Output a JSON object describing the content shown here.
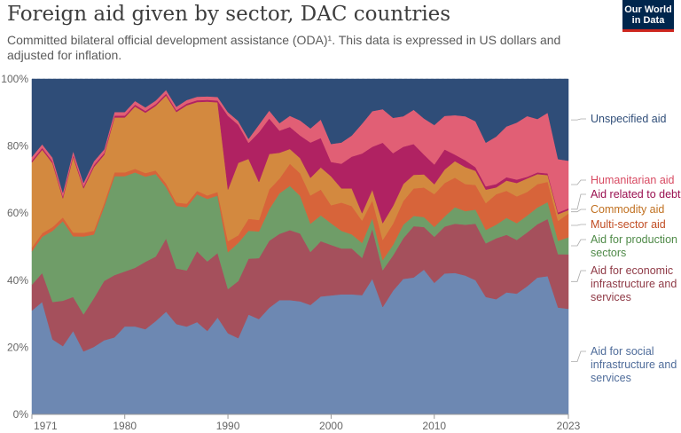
{
  "header": {
    "title": "Foreign aid given by sector, DAC countries",
    "subtitle": "Committed bilateral official development assistance (ODA)¹. This data is expressed in US dollars and adjusted for inflation.",
    "logo_line1": "Our World",
    "logo_line2": "in Data"
  },
  "colors": {
    "social": "#6d88b2",
    "economic": "#a5505c",
    "production": "#6f9d68",
    "multi": "#d7643a",
    "commodity": "#d3893f",
    "debt": "#b02262",
    "humanitarian": "#e15f75",
    "unspecified": "#2f4d78",
    "logo_bg": "#00264d",
    "logo_accent": "#ce261e"
  },
  "chart_data": {
    "type": "area",
    "stacked": true,
    "ylim": [
      0,
      100
    ],
    "yticks": [
      "0%",
      "20%",
      "40%",
      "60%",
      "80%",
      "100%"
    ],
    "xticks": [
      "1971",
      "1980",
      "1990",
      "2000",
      "2010",
      "2023"
    ],
    "grid": true,
    "legend": "right",
    "x": [
      1971,
      1972,
      1973,
      1974,
      1975,
      1976,
      1977,
      1978,
      1979,
      1980,
      1981,
      1982,
      1983,
      1984,
      1985,
      1986,
      1987,
      1988,
      1989,
      1990,
      1991,
      1992,
      1993,
      1994,
      1995,
      1996,
      1997,
      1998,
      1999,
      2000,
      2001,
      2002,
      2003,
      2004,
      2005,
      2006,
      2007,
      2008,
      2009,
      2010,
      2011,
      2012,
      2013,
      2014,
      2015,
      2016,
      2017,
      2018,
      2019,
      2020,
      2021,
      2022,
      2023
    ],
    "series": [
      {
        "name": "Aid for social infrastructure and services",
        "key": "social",
        "values": [
          28,
          31,
          20,
          18,
          22,
          17,
          18,
          20,
          21,
          24,
          24,
          24,
          26,
          28,
          26,
          25,
          26,
          24,
          27,
          22,
          20,
          25,
          25,
          27,
          31,
          31,
          30,
          31,
          32,
          33,
          34,
          34,
          32,
          38,
          32,
          35,
          40,
          40,
          44,
          40,
          42,
          43,
          41,
          38,
          35,
          34,
          36,
          36,
          38,
          41,
          41,
          32,
          31
        ]
      },
      {
        "name": "Aid for economic infrastructure and services",
        "key": "economic",
        "values": [
          7,
          8,
          10,
          12,
          9,
          10,
          13,
          16,
          17,
          15,
          16,
          19,
          18,
          20,
          16,
          16,
          20,
          20,
          18,
          12,
          15,
          14,
          16,
          17,
          18,
          19,
          18,
          15,
          15,
          14,
          13,
          13,
          10,
          14,
          11,
          10,
          12,
          15,
          13,
          14,
          14,
          15,
          15,
          16,
          16,
          18,
          17,
          16,
          16,
          16,
          17,
          16,
          16
        ]
      },
      {
        "name": "Aid for production sectors",
        "key": "production",
        "values": [
          9,
          10,
          19,
          21,
          16,
          21,
          17,
          20,
          27,
          26,
          26,
          24,
          23,
          14,
          18,
          18,
          16,
          18,
          16,
          10,
          10,
          7,
          7,
          8,
          11,
          12,
          10,
          8,
          7,
          6,
          5,
          4,
          4,
          3,
          3,
          3,
          4,
          3,
          3,
          3,
          3,
          5,
          4,
          4,
          4,
          4,
          5,
          5,
          5,
          5,
          5,
          4,
          5
        ]
      },
      {
        "name": "Multi-sector aid",
        "key": "multi",
        "values": [
          1,
          1,
          1,
          1,
          1,
          1,
          1,
          1,
          1,
          1,
          1,
          1,
          1,
          1,
          1,
          1,
          1,
          1,
          1,
          3,
          2,
          3,
          3,
          5,
          4,
          6,
          6,
          8,
          7,
          5,
          8,
          8,
          6,
          5,
          6,
          6,
          7,
          8,
          9,
          10,
          10,
          9,
          8,
          7,
          8,
          9,
          8,
          8,
          7,
          7,
          6,
          6,
          7
        ]
      },
      {
        "name": "Commodity aid",
        "key": "commodity",
        "values": [
          23,
          23,
          17,
          5,
          20,
          12,
          17,
          13,
          15,
          15,
          17,
          17,
          18,
          24,
          26,
          28,
          25,
          27,
          25,
          14,
          19,
          15,
          10,
          9,
          7,
          4,
          4,
          5,
          6,
          8,
          4,
          5,
          2,
          3,
          5,
          5,
          5,
          4,
          4,
          3,
          4,
          5,
          5,
          4,
          4,
          2,
          3,
          4,
          4,
          3,
          2,
          2,
          1
        ]
      },
      {
        "name": "Aid related to debt",
        "key": "debt",
        "values": [
          0.5,
          0.5,
          0.5,
          0.5,
          0.5,
          0.5,
          0.5,
          0.5,
          0.5,
          0.5,
          0.5,
          0.5,
          0.5,
          0.5,
          0.5,
          0.5,
          0.5,
          0.5,
          0.5,
          20,
          10,
          4,
          13,
          9,
          6,
          6,
          6,
          10,
          8,
          4,
          7,
          9,
          16,
          12,
          24,
          15,
          11,
          9,
          6,
          6,
          6,
          2,
          2,
          1,
          1,
          1,
          1,
          1,
          0.5,
          0.5,
          0.5,
          0.5,
          0.5
        ]
      },
      {
        "name": "Humanitarian aid",
        "key": "humanitarian",
        "values": [
          1,
          1,
          1,
          1,
          1,
          1,
          1,
          1,
          1,
          1,
          1,
          1,
          1,
          1,
          1,
          1,
          1,
          1,
          1,
          1,
          1,
          1,
          2,
          2,
          2,
          3,
          4,
          4,
          5,
          5,
          6,
          6,
          8,
          10,
          10,
          10,
          9,
          10,
          11,
          12,
          10,
          12,
          13,
          13,
          13,
          14,
          15,
          17,
          18,
          16,
          18,
          16,
          14
        ]
      },
      {
        "name": "Unspecified aid",
        "key": "unspecified",
        "values": [
          21,
          18,
          21,
          30,
          19,
          28,
          22,
          19,
          9,
          9,
          6,
          8,
          6,
          3,
          8,
          6,
          5,
          5,
          5,
          9,
          11,
          15,
          12,
          8,
          12,
          10,
          11,
          14,
          11,
          18,
          18,
          16,
          12,
          9,
          9,
          11,
          11,
          9,
          12,
          14,
          11,
          11,
          11,
          12,
          19,
          17,
          14,
          13,
          11,
          12,
          10,
          24,
          24
        ]
      }
    ]
  }
}
